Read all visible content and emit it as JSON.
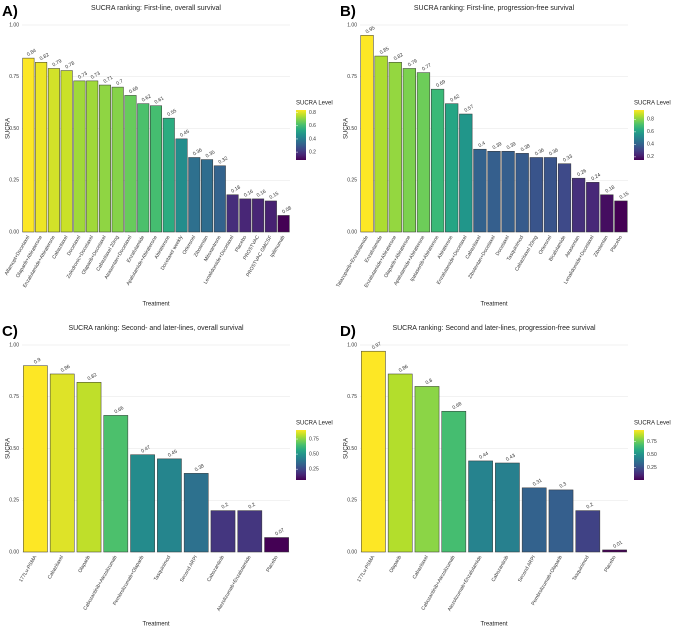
{
  "chart_data": [
    {
      "type": "bar",
      "label": "A)",
      "title": "SUCRA ranking: First-line, overall survival",
      "xlabel": "Treatment",
      "ylabel": "SUCRA",
      "categories": [
        "Alfamopt+Docetaxel",
        "Olaparib+Abiraterone",
        "Enzalutamide+Abiraterone",
        "Cabazitaxel",
        "Docetaxel",
        "Zoledronic+Docetaxel",
        "Olaparib+Docetaxel",
        "Cabazitaxel 20mg",
        "Atrasentan+Docetaxel",
        "Enzalutamide",
        "Apalutamide+Abiraterone",
        "Abiraterone",
        "Docetaxel weekly",
        "Orteronel",
        "Zibotentan",
        "Mitoxantrone",
        "Lenalidomide+Docetaxel",
        "Placebo",
        "PROSTVAC",
        "PROSTVAC GMCSF",
        "Ipilimumab"
      ],
      "values": [
        0.84,
        0.82,
        0.79,
        0.78,
        0.73,
        0.73,
        0.71,
        0.7,
        0.66,
        0.62,
        0.61,
        0.55,
        0.45,
        0.36,
        0.35,
        0.32,
        0.18,
        0.16,
        0.16,
        0.15,
        0.08
      ],
      "ylim": [
        0,
        1
      ],
      "yticks": [
        {
          "value": 0,
          "label": "0.00"
        },
        0.25,
        {
          "value": 0.5,
          "label": "0.50"
        },
        0.75,
        {
          "value": 1,
          "label": "1.00"
        }
      ],
      "grid": true,
      "colormap": "viridis",
      "legend_title": "SUCRA Level",
      "legend_ticks": [
        0.2,
        0.4,
        0.6,
        0.8
      ]
    },
    {
      "type": "bar",
      "label": "B)",
      "title": "SUCRA ranking: First-line, progression-free survival",
      "xlabel": "Treatment",
      "ylabel": "SUCRA",
      "categories": [
        "Talazoparib+Enzalutamide",
        "Enzalutamide",
        "Enzalutamide+Abiraterone",
        "Olaparib+Abiraterone",
        "Apalutamide+Abiraterone",
        "Ipatasertib+Abiraterone",
        "Abiraterone",
        "Enzalutamide+Docetaxel",
        "Cabazitaxel",
        "Zibotentan+Docetaxel",
        "Docetaxel",
        "Tasquinimod",
        "Cabazitaxel 20mg",
        "Orteronel",
        "Bicalutamide",
        "Atrasentan",
        "Lenalidomide+Docetaxel",
        "Zibotentan",
        "Placebo"
      ],
      "values": [
        0.95,
        0.85,
        0.82,
        0.79,
        0.77,
        0.69,
        0.62,
        0.57,
        0.4,
        0.39,
        0.39,
        0.38,
        0.36,
        0.36,
        0.33,
        0.26,
        0.24,
        0.18,
        0.15
      ],
      "ylim": [
        0,
        1
      ],
      "yticks": [
        {
          "value": 0,
          "label": "0.00"
        },
        0.25,
        {
          "value": 0.5,
          "label": "0.50"
        },
        0.75,
        {
          "value": 1,
          "label": "1.00"
        }
      ],
      "grid": true,
      "colormap": "viridis",
      "legend_title": "SUCRA Level",
      "legend_ticks": [
        0.2,
        0.4,
        0.6,
        0.8
      ]
    },
    {
      "type": "bar",
      "label": "C)",
      "title": "SUCRA ranking: Second- and later-lines, overall survival",
      "xlabel": "Treatment",
      "ylabel": "SUCRA",
      "categories": [
        "177Lu-PSMA",
        "Cabazitaxel",
        "Olaparib",
        "Cabozantinib+Atezolizumab",
        "Pembrolizumab+Olaparib",
        "Tasquinimod",
        "Second ARPI",
        "Cabozantinib",
        "Atezolizumab+Enzalutamide",
        "Placebo"
      ],
      "values": [
        0.9,
        0.86,
        0.82,
        0.66,
        0.47,
        0.45,
        0.38,
        0.2,
        0.2,
        0.07
      ],
      "ylim": [
        0,
        1
      ],
      "yticks": [
        {
          "value": 0,
          "label": "0.00"
        },
        0.25,
        {
          "value": 0.5,
          "label": "0.50"
        },
        0.75,
        {
          "value": 1,
          "label": "1.00"
        }
      ],
      "grid": true,
      "colormap": "viridis",
      "legend_title": "SUCRA Level",
      "legend_ticks": [
        0.25,
        {
          "value": 0.5,
          "label": "0.50"
        },
        0.75
      ]
    },
    {
      "type": "bar",
      "label": "D)",
      "title": "SUCRA ranking: Second and later-lines, progression-free survival",
      "xlabel": "Treatment",
      "ylabel": "SUCRA",
      "categories": [
        "177Lu-PSMA",
        "Olaparib",
        "Cabazitaxel",
        "Cabozantinib+Atezolizumab",
        "Atezolizumab+Enzalutamide",
        "Cabozantinib",
        "Second ARPI",
        "Pembrolizumab+Olaparib",
        "Tasquinimod",
        "Placebo"
      ],
      "values": [
        0.97,
        0.86,
        0.8,
        0.68,
        0.44,
        0.43,
        0.31,
        0.3,
        0.2,
        0.01
      ],
      "ylim": [
        0,
        1
      ],
      "yticks": [
        {
          "value": 0,
          "label": "0.00"
        },
        0.25,
        {
          "value": 0.5,
          "label": "0.50"
        },
        0.75,
        {
          "value": 1,
          "label": "1.00"
        }
      ],
      "grid": true,
      "colormap": "viridis",
      "legend_title": "SUCRA Level",
      "legend_ticks": [
        0.25,
        {
          "value": 0.5,
          "label": "0.50"
        },
        0.75
      ]
    }
  ]
}
